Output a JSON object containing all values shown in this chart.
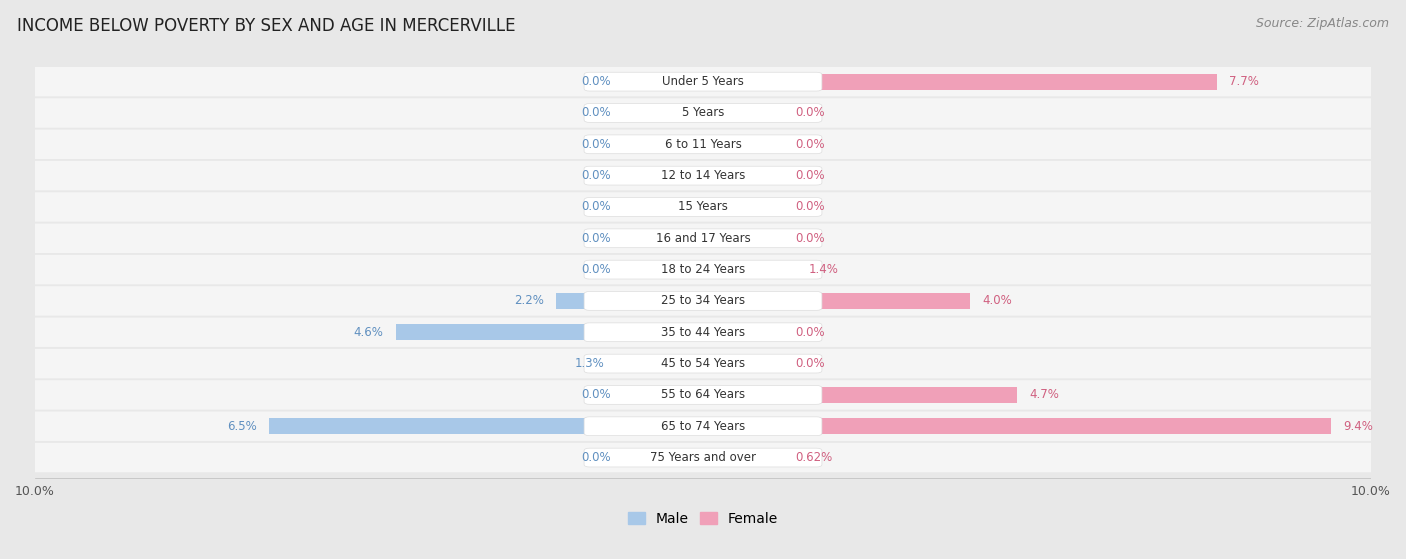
{
  "title": "INCOME BELOW POVERTY BY SEX AND AGE IN MERCERVILLE",
  "source": "Source: ZipAtlas.com",
  "categories": [
    "Under 5 Years",
    "5 Years",
    "6 to 11 Years",
    "12 to 14 Years",
    "15 Years",
    "16 and 17 Years",
    "18 to 24 Years",
    "25 to 34 Years",
    "35 to 44 Years",
    "45 to 54 Years",
    "55 to 64 Years",
    "65 to 74 Years",
    "75 Years and over"
  ],
  "male": [
    0.0,
    0.0,
    0.0,
    0.0,
    0.0,
    0.0,
    0.0,
    2.2,
    4.6,
    1.3,
    0.0,
    6.5,
    0.0
  ],
  "female": [
    7.7,
    0.0,
    0.0,
    0.0,
    0.0,
    0.0,
    1.4,
    4.0,
    0.0,
    0.0,
    4.7,
    9.4,
    0.62
  ],
  "male_color": "#a8c8e8",
  "female_color": "#f0a0b8",
  "male_label_color": "#6090c0",
  "female_label_color": "#d06080",
  "background_color": "#e8e8e8",
  "row_bg_color": "#f5f5f5",
  "bar_bg_color": "#ffffff",
  "xlim": 10.0,
  "min_bar": 1.2,
  "bar_height": 0.52,
  "title_fontsize": 12,
  "tick_fontsize": 9,
  "category_fontsize": 8.5,
  "value_fontsize": 8.5,
  "legend_fontsize": 10,
  "source_fontsize": 9
}
